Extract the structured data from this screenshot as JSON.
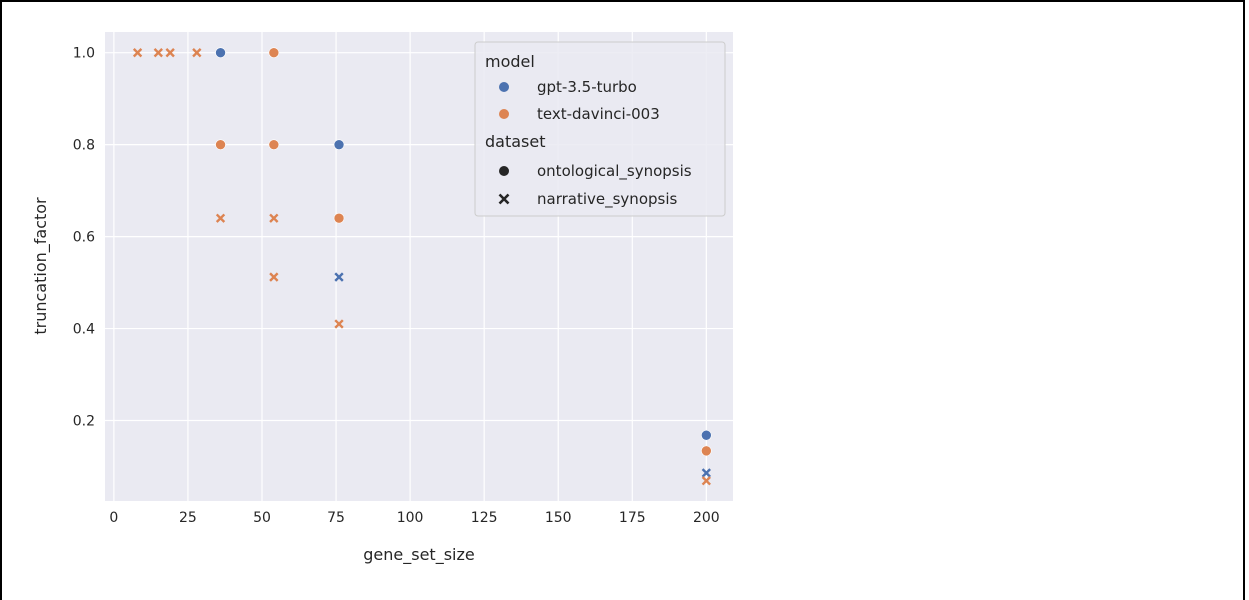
{
  "chart_data": {
    "type": "scatter",
    "xlabel": "gene_set_size",
    "ylabel": "truncation_factor",
    "xlim": [
      -3,
      209
    ],
    "ylim": [
      0.025,
      1.045
    ],
    "xticks": [
      0,
      25,
      50,
      75,
      100,
      125,
      150,
      175,
      200
    ],
    "yticks": [
      0.2,
      0.4,
      0.6,
      0.8,
      1.0
    ],
    "grid": true,
    "legend_placement": "top-right",
    "hue_title": "model",
    "style_title": "dataset",
    "hue_levels": [
      {
        "name": "gpt-3.5-turbo",
        "color": "#4c72b0"
      },
      {
        "name": "text-davinci-003",
        "color": "#dd8452"
      }
    ],
    "style_levels": [
      {
        "name": "ontological_synopsis",
        "marker": "circle"
      },
      {
        "name": "narrative_synopsis",
        "marker": "x"
      }
    ],
    "points": [
      {
        "x": 8,
        "y": 1.0,
        "model": "text-davinci-003",
        "dataset": "narrative_synopsis"
      },
      {
        "x": 15,
        "y": 1.0,
        "model": "text-davinci-003",
        "dataset": "narrative_synopsis"
      },
      {
        "x": 19,
        "y": 1.0,
        "model": "text-davinci-003",
        "dataset": "narrative_synopsis"
      },
      {
        "x": 28,
        "y": 1.0,
        "model": "text-davinci-003",
        "dataset": "narrative_synopsis"
      },
      {
        "x": 36,
        "y": 1.0,
        "model": "gpt-3.5-turbo",
        "dataset": "ontological_synopsis"
      },
      {
        "x": 54,
        "y": 1.0,
        "model": "text-davinci-003",
        "dataset": "ontological_synopsis"
      },
      {
        "x": 36,
        "y": 0.8,
        "model": "text-davinci-003",
        "dataset": "ontological_synopsis"
      },
      {
        "x": 54,
        "y": 0.8,
        "model": "text-davinci-003",
        "dataset": "ontological_synopsis"
      },
      {
        "x": 76,
        "y": 0.8,
        "model": "gpt-3.5-turbo",
        "dataset": "ontological_synopsis"
      },
      {
        "x": 36,
        "y": 0.64,
        "model": "text-davinci-003",
        "dataset": "narrative_synopsis"
      },
      {
        "x": 54,
        "y": 0.64,
        "model": "text-davinci-003",
        "dataset": "narrative_synopsis"
      },
      {
        "x": 76,
        "y": 0.64,
        "model": "text-davinci-003",
        "dataset": "ontological_synopsis"
      },
      {
        "x": 54,
        "y": 0.512,
        "model": "text-davinci-003",
        "dataset": "narrative_synopsis"
      },
      {
        "x": 76,
        "y": 0.512,
        "model": "gpt-3.5-turbo",
        "dataset": "narrative_synopsis"
      },
      {
        "x": 76,
        "y": 0.41,
        "model": "text-davinci-003",
        "dataset": "narrative_synopsis"
      },
      {
        "x": 200,
        "y": 0.168,
        "model": "gpt-3.5-turbo",
        "dataset": "ontological_synopsis"
      },
      {
        "x": 200,
        "y": 0.134,
        "model": "text-davinci-003",
        "dataset": "ontological_synopsis"
      },
      {
        "x": 200,
        "y": 0.086,
        "model": "gpt-3.5-turbo",
        "dataset": "narrative_synopsis"
      },
      {
        "x": 200,
        "y": 0.069,
        "model": "text-davinci-003",
        "dataset": "narrative_synopsis"
      }
    ]
  }
}
